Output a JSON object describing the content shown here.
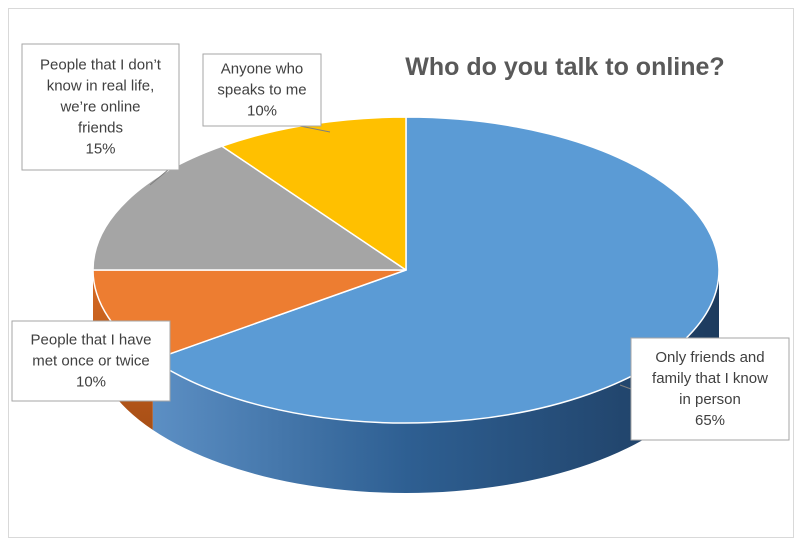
{
  "chart_data": {
    "type": "pie",
    "title": "Who do you talk to online?",
    "slices": [
      {
        "label": "Only friends and family that I know in person",
        "value": 65,
        "value_label": "65%",
        "color": "#5b9bd5"
      },
      {
        "label": "People that I have met once or twice",
        "value": 10,
        "value_label": "10%",
        "color": "#ed7d31"
      },
      {
        "label": "People that I don't know in real life, we're online friends",
        "value": 15,
        "value_label": "15%",
        "color": "#a5a5a5"
      },
      {
        "label": "Anyone who speaks to me",
        "value": 10,
        "value_label": "10%",
        "color": "#ffc000"
      }
    ],
    "style": "3d-pie",
    "legend": "none",
    "data_labels": "callouts"
  }
}
